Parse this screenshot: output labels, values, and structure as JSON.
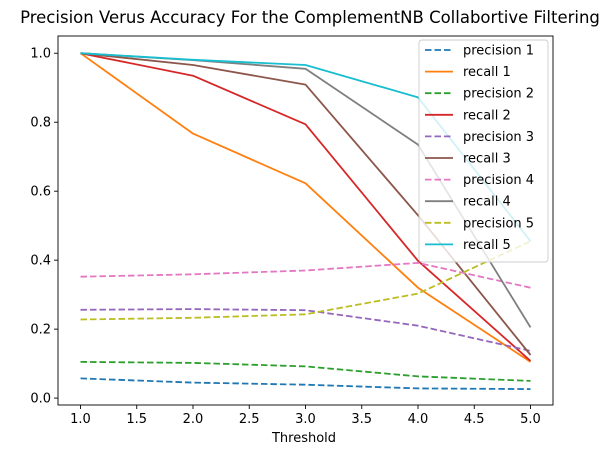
{
  "chart_data": {
    "type": "line",
    "title": "Precision Verus Accuracy For the  ComplementNB Collabortive Filtering",
    "xlabel": "Threshold",
    "ylabel": "",
    "x": [
      1,
      2,
      3,
      4,
      5
    ],
    "xlim": [
      0.8,
      5.2
    ],
    "ylim": [
      -0.02,
      1.05
    ],
    "xticks": [
      1.0,
      1.5,
      2.0,
      2.5,
      3.0,
      3.5,
      4.0,
      4.5,
      5.0
    ],
    "xtick_labels": [
      "1.0",
      "1.5",
      "2.0",
      "2.5",
      "3.0",
      "3.5",
      "4.0",
      "4.5",
      "5.0"
    ],
    "yticks": [
      0.0,
      0.2,
      0.4,
      0.6,
      0.8,
      1.0
    ],
    "ytick_labels": [
      "0.0",
      "0.2",
      "0.4",
      "0.6",
      "0.8",
      "1.0"
    ],
    "grid": false,
    "legend_position": "top-right",
    "series": [
      {
        "name": "precision 1",
        "style": "dashed",
        "color": "#1f77b4",
        "values": [
          0.057,
          0.045,
          0.039,
          0.028,
          0.026
        ]
      },
      {
        "name": "recall 1",
        "style": "solid",
        "color": "#ff7f0e",
        "values": [
          1.0,
          0.767,
          0.623,
          0.32,
          0.105
        ]
      },
      {
        "name": "precision 2",
        "style": "dashed",
        "color": "#2ca02c",
        "values": [
          0.105,
          0.102,
          0.092,
          0.063,
          0.05
        ]
      },
      {
        "name": "recall 2",
        "style": "solid",
        "color": "#d62728",
        "values": [
          1.0,
          0.935,
          0.794,
          0.398,
          0.108
        ]
      },
      {
        "name": "precision 3",
        "style": "dashed",
        "color": "#9467bd",
        "values": [
          0.256,
          0.258,
          0.255,
          0.21,
          0.137
        ]
      },
      {
        "name": "recall 3",
        "style": "solid",
        "color": "#8c564b",
        "values": [
          1.0,
          0.966,
          0.909,
          0.53,
          0.125
        ]
      },
      {
        "name": "precision 4",
        "style": "dashed",
        "color": "#e377c2",
        "values": [
          0.352,
          0.359,
          0.37,
          0.392,
          0.32
        ]
      },
      {
        "name": "recall 4",
        "style": "solid",
        "color": "#7f7f7f",
        "values": [
          1.0,
          0.98,
          0.955,
          0.735,
          0.205
        ]
      },
      {
        "name": "precision 5",
        "style": "dashed",
        "color": "#bcbd22",
        "values": [
          0.228,
          0.233,
          0.243,
          0.303,
          0.455
        ]
      },
      {
        "name": "recall 5",
        "style": "solid",
        "color": "#17becf",
        "values": [
          1.0,
          0.981,
          0.966,
          0.872,
          0.455
        ]
      }
    ]
  }
}
